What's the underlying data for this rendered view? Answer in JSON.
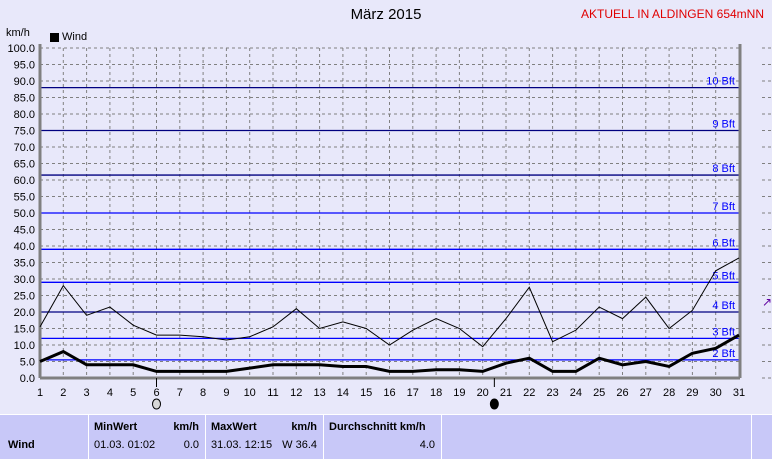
{
  "header": {
    "title": "März 2015",
    "station": "AKTUELL IN ALDINGEN 654mNN"
  },
  "chart_data": {
    "type": "line",
    "title": "März 2015",
    "ylabel": "km/h",
    "ylim": [
      0,
      100
    ],
    "xlim": [
      1,
      31
    ],
    "grid": true,
    "legend": "top-left",
    "legend_entries": [
      "Wind"
    ],
    "x": [
      1,
      2,
      3,
      4,
      5,
      6,
      7,
      8,
      9,
      10,
      11,
      12,
      13,
      14,
      15,
      16,
      17,
      18,
      19,
      20,
      21,
      22,
      23,
      24,
      25,
      26,
      27,
      28,
      29,
      30,
      31
    ],
    "yticks": [
      "0.0",
      "5.0",
      "10.0",
      "15.0",
      "20.0",
      "25.0",
      "30.0",
      "35.0",
      "40.0",
      "45.0",
      "50.0",
      "55.0",
      "60.0",
      "65.0",
      "70.0",
      "75.0",
      "80.0",
      "85.0",
      "90.0",
      "95.0",
      "100.0"
    ],
    "series": [
      {
        "style": "thin",
        "color": "#000000",
        "values": [
          15.5,
          28,
          19,
          21.5,
          16,
          13,
          13,
          12.5,
          11.5,
          12.5,
          15.5,
          21,
          15,
          17,
          15,
          10,
          14.5,
          18,
          15,
          9.5,
          18,
          27.5,
          11,
          14.5,
          21.5,
          18,
          24.5,
          15,
          20.5,
          32.5,
          36.4
        ]
      },
      {
        "style": "thick",
        "color": "#000000",
        "values": [
          5,
          8,
          4,
          4,
          4,
          2,
          2,
          2,
          2,
          3,
          4,
          4,
          4,
          3.5,
          3.5,
          2,
          2,
          2.5,
          2.5,
          2,
          4.5,
          6,
          2,
          2,
          6,
          4,
          5,
          3.5,
          7.5,
          9,
          13
        ]
      }
    ],
    "beaufort_lines": [
      {
        "label": "2 Bft",
        "value": 5.5,
        "color": "#0000ff"
      },
      {
        "label": "3 Bft",
        "value": 12,
        "color": "#0000ff"
      },
      {
        "label": "4 Bft",
        "value": 20,
        "color": "#000080"
      },
      {
        "label": "5 Bft",
        "value": 29,
        "color": "#0000ff"
      },
      {
        "label": "6 Bft",
        "value": 39,
        "color": "#0000ff"
      },
      {
        "label": "7 Bft",
        "value": 50,
        "color": "#0000ff"
      },
      {
        "label": "8 Bft",
        "value": 61.5,
        "color": "#000080"
      },
      {
        "label": "9 Bft",
        "value": 75,
        "color": "#000080"
      },
      {
        "label": "10 Bft",
        "value": 88,
        "color": "#000080"
      }
    ],
    "moon_phases": [
      {
        "day": 6,
        "phase": "full-moon"
      },
      {
        "day": 20.5,
        "phase": "new-moon"
      }
    ]
  },
  "table": {
    "row_label": "Wind",
    "min": {
      "header": "MinWert",
      "unit": "km/h",
      "date": "01.03.  01:02",
      "value": "0.0"
    },
    "max": {
      "header": "MaxWert",
      "unit": "km/h",
      "date": "31.03.  12:15",
      "value": "W 36.4"
    },
    "avg": {
      "header": "Durchschnitt km/h",
      "value": "4.0"
    }
  }
}
